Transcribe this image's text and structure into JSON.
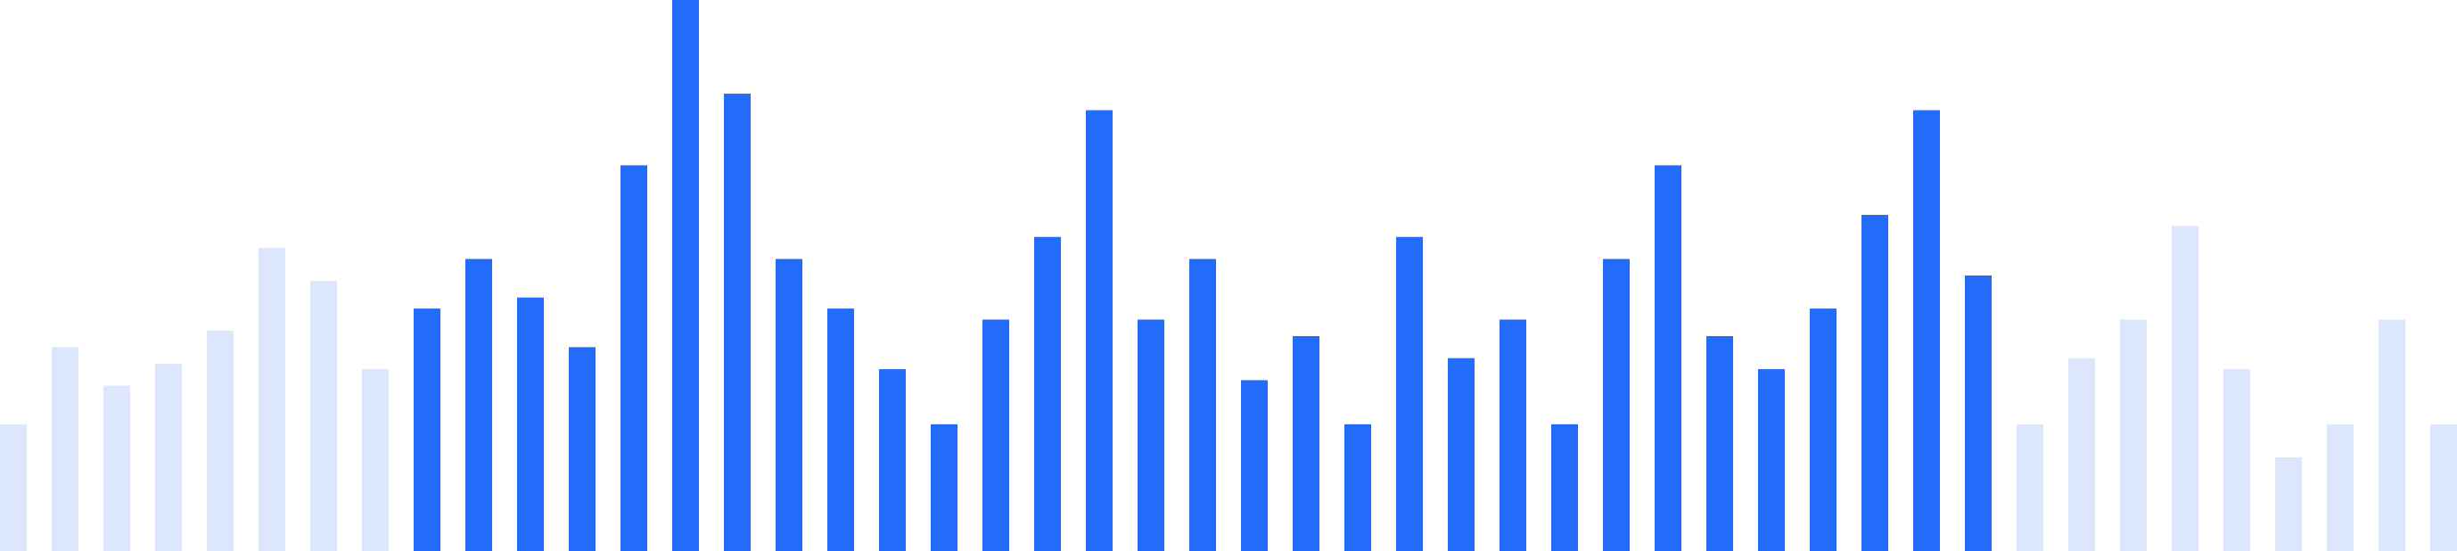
{
  "chart_data": {
    "type": "bar",
    "title": "",
    "xlabel": "",
    "ylabel": "",
    "ylim": [
      0,
      100
    ],
    "grid": false,
    "legend": "none",
    "colors": {
      "highlight": "#236cfa",
      "muted": "#dce7fd"
    },
    "bars": [
      {
        "value": 23,
        "highlighted": false
      },
      {
        "value": 37,
        "highlighted": false
      },
      {
        "value": 30,
        "highlighted": false
      },
      {
        "value": 34,
        "highlighted": false
      },
      {
        "value": 40,
        "highlighted": false
      },
      {
        "value": 55,
        "highlighted": false
      },
      {
        "value": 49,
        "highlighted": false
      },
      {
        "value": 33,
        "highlighted": false
      },
      {
        "value": 44,
        "highlighted": true
      },
      {
        "value": 53,
        "highlighted": true
      },
      {
        "value": 46,
        "highlighted": true
      },
      {
        "value": 37,
        "highlighted": true
      },
      {
        "value": 70,
        "highlighted": true
      },
      {
        "value": 100,
        "highlighted": true
      },
      {
        "value": 83,
        "highlighted": true
      },
      {
        "value": 53,
        "highlighted": true
      },
      {
        "value": 44,
        "highlighted": true
      },
      {
        "value": 33,
        "highlighted": true
      },
      {
        "value": 23,
        "highlighted": true
      },
      {
        "value": 42,
        "highlighted": true
      },
      {
        "value": 57,
        "highlighted": true
      },
      {
        "value": 80,
        "highlighted": true
      },
      {
        "value": 42,
        "highlighted": true
      },
      {
        "value": 53,
        "highlighted": true
      },
      {
        "value": 31,
        "highlighted": true
      },
      {
        "value": 39,
        "highlighted": true
      },
      {
        "value": 23,
        "highlighted": true
      },
      {
        "value": 57,
        "highlighted": true
      },
      {
        "value": 35,
        "highlighted": true
      },
      {
        "value": 42,
        "highlighted": true
      },
      {
        "value": 23,
        "highlighted": true
      },
      {
        "value": 53,
        "highlighted": true
      },
      {
        "value": 70,
        "highlighted": true
      },
      {
        "value": 39,
        "highlighted": true
      },
      {
        "value": 33,
        "highlighted": true
      },
      {
        "value": 44,
        "highlighted": true
      },
      {
        "value": 61,
        "highlighted": true
      },
      {
        "value": 80,
        "highlighted": true
      },
      {
        "value": 50,
        "highlighted": true
      },
      {
        "value": 23,
        "highlighted": false
      },
      {
        "value": 35,
        "highlighted": false
      },
      {
        "value": 42,
        "highlighted": false
      },
      {
        "value": 59,
        "highlighted": false
      },
      {
        "value": 33,
        "highlighted": false
      },
      {
        "value": 17,
        "highlighted": false
      },
      {
        "value": 23,
        "highlighted": false
      },
      {
        "value": 42,
        "highlighted": false
      },
      {
        "value": 23,
        "highlighted": false
      }
    ]
  }
}
